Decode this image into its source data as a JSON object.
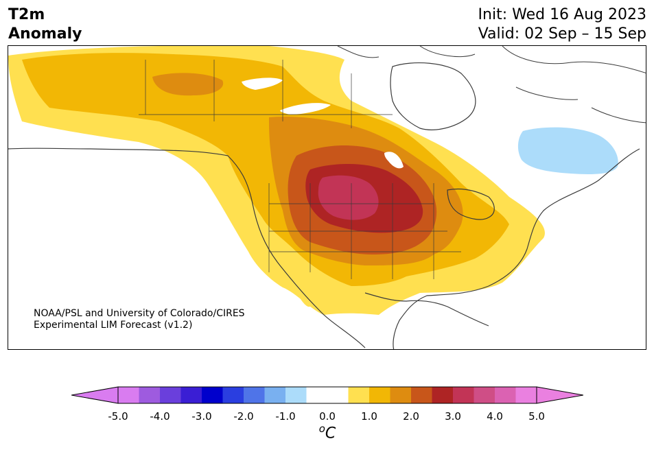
{
  "title": {
    "line1": "T2m",
    "line2": "Anomaly"
  },
  "dates": {
    "init": "Init: Wed 16 Aug 2023",
    "valid": "Valid: 02 Sep – 15 Sep"
  },
  "credit": {
    "line1": "NOAA/PSL and University of Colorado/CIRES",
    "line2": "Experimental LIM Forecast (v1.2)"
  },
  "colorbar": {
    "unit_main": "C",
    "unit_sup": "o",
    "ticks": [
      "-5.0",
      "-4.0",
      "-3.0",
      "-2.0",
      "-1.0",
      "0.0",
      "1.0",
      "2.0",
      "3.0",
      "4.0",
      "5.0"
    ],
    "tick_values": [
      -5,
      -4,
      -3,
      -2,
      -1,
      0,
      1,
      2,
      3,
      4,
      5
    ],
    "range": [
      -5.5,
      5.5
    ],
    "low_extend_color": "#d97cf0",
    "high_extend_color": "#ea80e0",
    "bins": [
      {
        "min": -5.0,
        "max": -4.5,
        "color": "#d97cf0"
      },
      {
        "min": -4.5,
        "max": -4.0,
        "color": "#9e5bdf"
      },
      {
        "min": -4.0,
        "max": -3.5,
        "color": "#6a3fdc"
      },
      {
        "min": -3.5,
        "max": -3.0,
        "color": "#3a1ed4"
      },
      {
        "min": -3.0,
        "max": -2.5,
        "color": "#0000cc"
      },
      {
        "min": -2.5,
        "max": -2.0,
        "color": "#2a3ee0"
      },
      {
        "min": -2.0,
        "max": -1.5,
        "color": "#4f74e8"
      },
      {
        "min": -1.5,
        "max": -1.0,
        "color": "#79b0f0"
      },
      {
        "min": -1.0,
        "max": -0.5,
        "color": "#acdcfa"
      },
      {
        "min": -0.5,
        "max": 0.5,
        "color": "#ffffff"
      },
      {
        "min": 0.5,
        "max": 1.0,
        "color": "#ffe050"
      },
      {
        "min": 1.0,
        "max": 1.5,
        "color": "#f2b705"
      },
      {
        "min": 1.5,
        "max": 2.0,
        "color": "#de8c10"
      },
      {
        "min": 2.0,
        "max": 2.5,
        "color": "#c8561a"
      },
      {
        "min": 2.5,
        "max": 3.0,
        "color": "#ae2424"
      },
      {
        "min": 3.0,
        "max": 3.5,
        "color": "#c23456"
      },
      {
        "min": 3.5,
        "max": 4.0,
        "color": "#cf4e86"
      },
      {
        "min": 4.0,
        "max": 4.5,
        "color": "#db62b2"
      },
      {
        "min": 4.5,
        "max": 5.0,
        "color": "#ea80e0"
      }
    ]
  },
  "map": {
    "colors": {
      "land_outline": "#3a3a3a",
      "warm1": "#ffe050",
      "warm2": "#f2b705",
      "warm3": "#de8c10",
      "warm4": "#c8561a",
      "warm5": "#ae2424",
      "warm6": "#c23456",
      "cool1": "#acdcfa"
    }
  }
}
